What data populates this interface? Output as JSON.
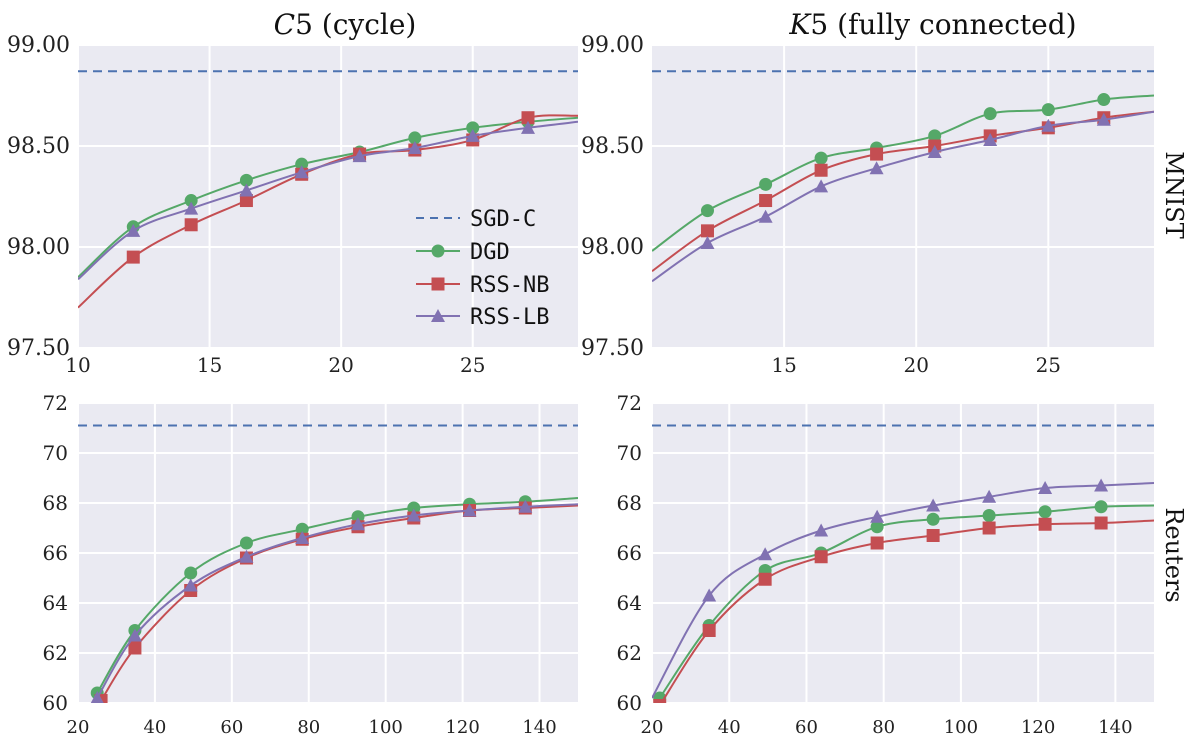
{
  "colors": {
    "sgd": "#4c72b0",
    "dgd": "#55a868",
    "rssnb": "#c44e52",
    "rsslb": "#8172b2",
    "panel": "#eaeaf2"
  },
  "column_titles": {
    "left_math": "C",
    "left_sub": "5",
    "left_rest": " (cycle)",
    "right_math": "K",
    "right_sub": "5",
    "right_rest": " (fully connected)"
  },
  "row_labels": {
    "top": "MNIST",
    "bottom": "Reuters"
  },
  "legend": {
    "sgd": "SGD-C",
    "dgd": "DGD",
    "rssnb": "RSS-NB",
    "rsslb": "RSS-LB"
  },
  "chart_data": [
    {
      "id": "mnist-c5",
      "type": "line",
      "title": "C5 (cycle)",
      "xlim": [
        10,
        29
      ],
      "ylim": [
        97.5,
        99.0
      ],
      "xticks": [
        10,
        15,
        20,
        25
      ],
      "yticks": [
        97.5,
        98.0,
        98.5,
        99.0
      ],
      "xticklabels": [
        "10",
        "15",
        "20",
        "25"
      ],
      "yticklabels": [
        "97.50",
        "98.00",
        "98.50",
        "99.00"
      ],
      "hline": 98.87,
      "series": [
        {
          "name": "DGD",
          "key": "dgd",
          "marker": "circle",
          "x": [
            10,
            12.1,
            14.3,
            16.4,
            18.5,
            20.7,
            22.8,
            25.0,
            27.1,
            29
          ],
          "y": [
            97.85,
            98.1,
            98.23,
            98.33,
            98.41,
            98.47,
            98.54,
            98.59,
            98.62,
            98.64
          ]
        },
        {
          "name": "RSS-NB",
          "key": "rssnb",
          "marker": "square",
          "x": [
            10,
            12.1,
            14.3,
            16.4,
            18.5,
            20.7,
            22.8,
            25.0,
            27.1,
            29
          ],
          "y": [
            97.7,
            97.95,
            98.11,
            98.23,
            98.36,
            98.46,
            98.48,
            98.53,
            98.64,
            98.65
          ]
        },
        {
          "name": "RSS-LB",
          "key": "rsslb",
          "marker": "triangle",
          "x": [
            10,
            12.1,
            14.3,
            16.4,
            18.5,
            20.7,
            22.8,
            25.0,
            27.1,
            29
          ],
          "y": [
            97.84,
            98.08,
            98.19,
            98.28,
            98.37,
            98.45,
            98.49,
            98.55,
            98.59,
            98.62
          ]
        }
      ]
    },
    {
      "id": "mnist-k5",
      "type": "line",
      "title": "K5 (fully connected)",
      "xlim": [
        10,
        29
      ],
      "ylim": [
        97.5,
        99.0
      ],
      "xticks": [
        15,
        20,
        25
      ],
      "yticks": [
        97.5,
        98.0,
        98.5,
        99.0
      ],
      "xticklabels": [
        "15",
        "20",
        "25"
      ],
      "yticklabels": [
        "97.50",
        "98.00",
        "98.50",
        "99.00"
      ],
      "hline": 98.87,
      "series": [
        {
          "name": "DGD",
          "key": "dgd",
          "marker": "circle",
          "x": [
            10,
            12.1,
            14.3,
            16.4,
            18.5,
            20.7,
            22.8,
            25.0,
            27.1,
            29
          ],
          "y": [
            97.98,
            98.18,
            98.31,
            98.44,
            98.49,
            98.55,
            98.66,
            98.68,
            98.73,
            98.75
          ]
        },
        {
          "name": "RSS-NB",
          "key": "rssnb",
          "marker": "square",
          "x": [
            10,
            12.1,
            14.3,
            16.4,
            18.5,
            20.7,
            22.8,
            25.0,
            27.1,
            29
          ],
          "y": [
            97.88,
            98.08,
            98.23,
            98.38,
            98.46,
            98.5,
            98.55,
            98.59,
            98.64,
            98.67
          ]
        },
        {
          "name": "RSS-LB",
          "key": "rsslb",
          "marker": "triangle",
          "x": [
            10,
            12.1,
            14.3,
            16.4,
            18.5,
            20.7,
            22.8,
            25.0,
            27.1,
            29
          ],
          "y": [
            97.83,
            98.02,
            98.15,
            98.3,
            98.39,
            98.47,
            98.53,
            98.6,
            98.63,
            98.67
          ]
        }
      ]
    },
    {
      "id": "reuters-c5",
      "type": "line",
      "xlim": [
        20,
        150
      ],
      "ylim": [
        60,
        72
      ],
      "xticks": [
        20,
        40,
        60,
        80,
        100,
        120,
        140
      ],
      "yticks": [
        60,
        62,
        64,
        66,
        68,
        70,
        72
      ],
      "xticklabels": [
        "20",
        "40",
        "60",
        "80",
        "100",
        "120",
        "140"
      ],
      "yticklabels": [
        "60",
        "62",
        "64",
        "66",
        "68",
        "70",
        "72"
      ],
      "hline": 71.1,
      "series": [
        {
          "name": "DGD",
          "key": "dgd",
          "marker": "circle",
          "x": [
            25,
            34.8,
            49.3,
            63.8,
            78.3,
            92.8,
            107.3,
            121.8,
            136.3,
            150
          ],
          "y": [
            60.4,
            62.9,
            65.2,
            66.4,
            66.95,
            67.45,
            67.8,
            67.95,
            68.05,
            68.2
          ]
        },
        {
          "name": "RSS-NB",
          "key": "rssnb",
          "marker": "square",
          "x": [
            26,
            34.8,
            49.3,
            63.8,
            78.3,
            92.8,
            107.3,
            121.8,
            136.3,
            150
          ],
          "y": [
            60.1,
            62.2,
            64.5,
            65.8,
            66.55,
            67.05,
            67.4,
            67.7,
            67.8,
            67.9
          ]
        },
        {
          "name": "RSS-LB",
          "key": "rsslb",
          "marker": "triangle",
          "x": [
            25,
            34.8,
            49.3,
            63.8,
            78.3,
            92.8,
            107.3,
            121.8,
            136.3,
            150
          ],
          "y": [
            60.2,
            62.7,
            64.7,
            65.85,
            66.6,
            67.15,
            67.5,
            67.7,
            67.85,
            67.95
          ]
        }
      ]
    },
    {
      "id": "reuters-k5",
      "type": "line",
      "xlim": [
        20,
        150
      ],
      "ylim": [
        60,
        72
      ],
      "xticks": [
        20,
        40,
        60,
        80,
        100,
        120,
        140
      ],
      "yticks": [
        60,
        62,
        64,
        66,
        68,
        70,
        72
      ],
      "xticklabels": [
        "20",
        "40",
        "60",
        "80",
        "100",
        "120",
        "140"
      ],
      "yticklabels": [
        "60",
        "62",
        "64",
        "66",
        "68",
        "70",
        "72"
      ],
      "hline": 71.1,
      "series": [
        {
          "name": "DGD",
          "key": "dgd",
          "marker": "circle",
          "x": [
            22,
            34.8,
            49.3,
            63.8,
            78.3,
            92.8,
            107.3,
            121.8,
            136.3,
            150
          ],
          "y": [
            60.2,
            63.1,
            65.3,
            66.0,
            67.05,
            67.35,
            67.5,
            67.65,
            67.85,
            67.9
          ]
        },
        {
          "name": "RSS-NB",
          "key": "rssnb",
          "marker": "square",
          "x": [
            22,
            34.8,
            49.3,
            63.8,
            78.3,
            92.8,
            107.3,
            121.8,
            136.3,
            150
          ],
          "y": [
            59.9,
            62.9,
            64.95,
            65.85,
            66.4,
            66.7,
            67.0,
            67.15,
            67.2,
            67.3
          ]
        },
        {
          "name": "RSS-LB",
          "key": "rsslb",
          "marker": "triangle",
          "x": [
            20,
            34.8,
            49.3,
            63.8,
            78.3,
            92.8,
            107.3,
            121.8,
            136.3,
            150
          ],
          "y": [
            60.2,
            64.3,
            65.95,
            66.9,
            67.45,
            67.9,
            68.25,
            68.6,
            68.7,
            68.8
          ]
        }
      ]
    }
  ]
}
